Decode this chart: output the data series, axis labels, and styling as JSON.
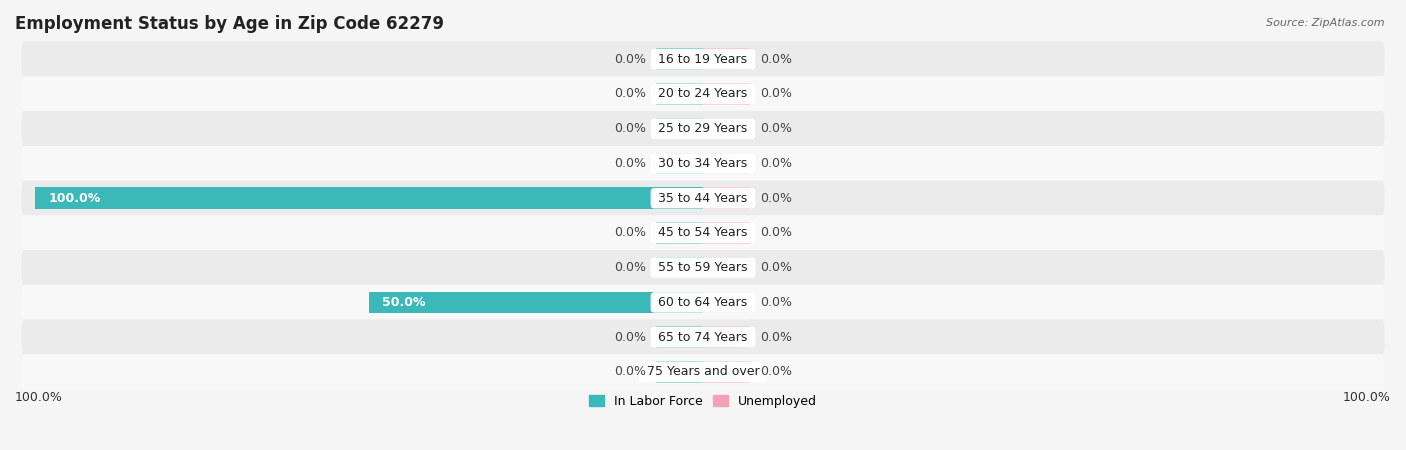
{
  "title": "Employment Status by Age in Zip Code 62279",
  "source": "Source: ZipAtlas.com",
  "categories": [
    "16 to 19 Years",
    "20 to 24 Years",
    "25 to 29 Years",
    "30 to 34 Years",
    "35 to 44 Years",
    "45 to 54 Years",
    "55 to 59 Years",
    "60 to 64 Years",
    "65 to 74 Years",
    "75 Years and over"
  ],
  "labor_force": [
    0.0,
    0.0,
    0.0,
    0.0,
    100.0,
    0.0,
    0.0,
    50.0,
    0.0,
    0.0
  ],
  "unemployed": [
    0.0,
    0.0,
    0.0,
    0.0,
    0.0,
    0.0,
    0.0,
    0.0,
    0.0,
    0.0
  ],
  "color_labor": "#3bb8b8",
  "color_labor_stub": "#8dd4d4",
  "color_unemployed": "#f4a0b5",
  "color_unemployed_stub": "#f9c8d5",
  "color_row_light": "#ebebeb",
  "color_row_white": "#f8f8f8",
  "xlim": 100.0,
  "stub_size": 7.0,
  "bar_height": 0.62,
  "legend_labor": "In Labor Force",
  "legend_unemployed": "Unemployed",
  "title_fontsize": 12,
  "source_fontsize": 8,
  "label_fontsize": 9,
  "category_fontsize": 9,
  "background_color": "#f5f5f5",
  "axis_bottom_label": "100.0%"
}
